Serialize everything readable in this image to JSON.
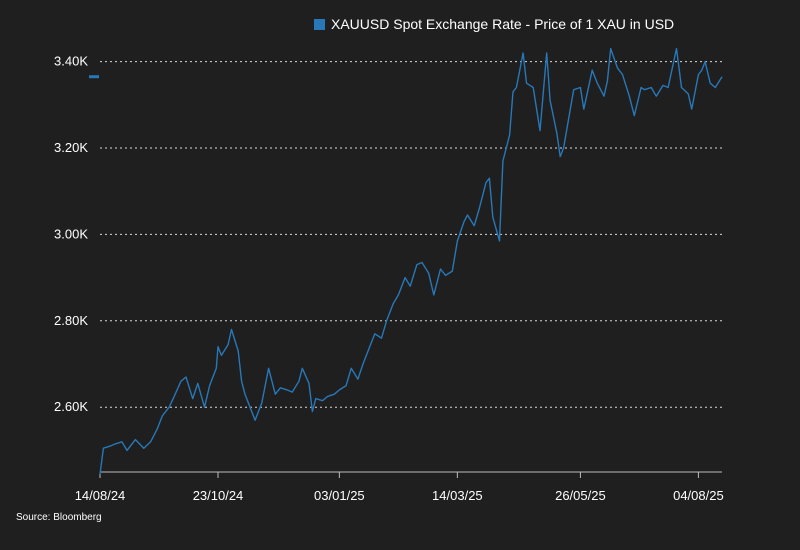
{
  "chart_data": {
    "type": "line",
    "title": "",
    "xlabel": "",
    "ylabel": "",
    "legend_position": "top",
    "ylim": [
      2450,
      3450
    ],
    "yticks": [
      2600,
      2800,
      3000,
      3200,
      3400
    ],
    "ytick_labels": [
      "2.60K",
      "2.80K",
      "3.00K",
      "3.20K",
      "3.40K"
    ],
    "xticks": [
      "2024-08-14",
      "2024-10-23",
      "2025-01-03",
      "2025-03-14",
      "2025-05-26",
      "2025-08-04"
    ],
    "xtick_labels": [
      "14/08/24",
      "23/10/24",
      "03/01/25",
      "14/03/25",
      "26/05/25",
      "04/08/25"
    ],
    "x_range": [
      "2024-08-14",
      "2025-08-18"
    ],
    "grid": "horizontal dotted",
    "last_value": 3365,
    "series": [
      {
        "name": "XAUUSD Spot Exchange Rate - Price of 1 XAU in USD",
        "color": "#2878b8",
        "points": [
          [
            "2024-08-14",
            2445
          ],
          [
            "2024-08-16",
            2505
          ],
          [
            "2024-08-20",
            2510
          ],
          [
            "2024-08-23",
            2515
          ],
          [
            "2024-08-27",
            2520
          ],
          [
            "2024-08-30",
            2500
          ],
          [
            "2024-09-04",
            2525
          ],
          [
            "2024-09-09",
            2505
          ],
          [
            "2024-09-13",
            2520
          ],
          [
            "2024-09-17",
            2550
          ],
          [
            "2024-09-20",
            2580
          ],
          [
            "2024-09-24",
            2600
          ],
          [
            "2024-09-27",
            2625
          ],
          [
            "2024-10-01",
            2660
          ],
          [
            "2024-10-04",
            2670
          ],
          [
            "2024-10-08",
            2620
          ],
          [
            "2024-10-11",
            2655
          ],
          [
            "2024-10-15",
            2600
          ],
          [
            "2024-10-18",
            2650
          ],
          [
            "2024-10-22",
            2690
          ],
          [
            "2024-10-23",
            2740
          ],
          [
            "2024-10-25",
            2720
          ],
          [
            "2024-10-29",
            2745
          ],
          [
            "2024-10-31",
            2780
          ],
          [
            "2024-11-04",
            2730
          ],
          [
            "2024-11-06",
            2660
          ],
          [
            "2024-11-08",
            2630
          ],
          [
            "2024-11-12",
            2590
          ],
          [
            "2024-11-14",
            2570
          ],
          [
            "2024-11-18",
            2610
          ],
          [
            "2024-11-20",
            2650
          ],
          [
            "2024-11-22",
            2690
          ],
          [
            "2024-11-26",
            2630
          ],
          [
            "2024-11-29",
            2645
          ],
          [
            "2024-12-03",
            2640
          ],
          [
            "2024-12-06",
            2635
          ],
          [
            "2024-12-10",
            2660
          ],
          [
            "2024-12-12",
            2690
          ],
          [
            "2024-12-16",
            2655
          ],
          [
            "2024-12-18",
            2590
          ],
          [
            "2024-12-20",
            2620
          ],
          [
            "2024-12-24",
            2615
          ],
          [
            "2024-12-27",
            2625
          ],
          [
            "2024-12-31",
            2630
          ],
          [
            "2025-01-03",
            2640
          ],
          [
            "2025-01-07",
            2650
          ],
          [
            "2025-01-10",
            2690
          ],
          [
            "2025-01-14",
            2665
          ],
          [
            "2025-01-17",
            2700
          ],
          [
            "2025-01-21",
            2740
          ],
          [
            "2025-01-24",
            2770
          ],
          [
            "2025-01-28",
            2760
          ],
          [
            "2025-01-31",
            2800
          ],
          [
            "2025-02-04",
            2840
          ],
          [
            "2025-02-07",
            2860
          ],
          [
            "2025-02-11",
            2900
          ],
          [
            "2025-02-14",
            2880
          ],
          [
            "2025-02-18",
            2930
          ],
          [
            "2025-02-21",
            2935
          ],
          [
            "2025-02-25",
            2910
          ],
          [
            "2025-02-28",
            2860
          ],
          [
            "2025-03-04",
            2920
          ],
          [
            "2025-03-07",
            2905
          ],
          [
            "2025-03-11",
            2915
          ],
          [
            "2025-03-14",
            2985
          ],
          [
            "2025-03-18",
            3030
          ],
          [
            "2025-03-20",
            3045
          ],
          [
            "2025-03-24",
            3020
          ],
          [
            "2025-03-27",
            3060
          ],
          [
            "2025-03-31",
            3120
          ],
          [
            "2025-04-02",
            3130
          ],
          [
            "2025-04-04",
            3040
          ],
          [
            "2025-04-08",
            2985
          ],
          [
            "2025-04-10",
            3170
          ],
          [
            "2025-04-14",
            3230
          ],
          [
            "2025-04-16",
            3330
          ],
          [
            "2025-04-18",
            3340
          ],
          [
            "2025-04-22",
            3420
          ],
          [
            "2025-04-24",
            3350
          ],
          [
            "2025-04-28",
            3340
          ],
          [
            "2025-04-30",
            3290
          ],
          [
            "2025-05-02",
            3240
          ],
          [
            "2025-05-06",
            3420
          ],
          [
            "2025-05-08",
            3310
          ],
          [
            "2025-05-12",
            3235
          ],
          [
            "2025-05-14",
            3180
          ],
          [
            "2025-05-16",
            3200
          ],
          [
            "2025-05-20",
            3290
          ],
          [
            "2025-05-22",
            3335
          ],
          [
            "2025-05-26",
            3340
          ],
          [
            "2025-05-28",
            3290
          ],
          [
            "2025-06-02",
            3380
          ],
          [
            "2025-06-05",
            3350
          ],
          [
            "2025-06-09",
            3320
          ],
          [
            "2025-06-11",
            3355
          ],
          [
            "2025-06-13",
            3430
          ],
          [
            "2025-06-17",
            3385
          ],
          [
            "2025-06-20",
            3370
          ],
          [
            "2025-06-24",
            3320
          ],
          [
            "2025-06-27",
            3275
          ],
          [
            "2025-07-01",
            3340
          ],
          [
            "2025-07-03",
            3335
          ],
          [
            "2025-07-07",
            3340
          ],
          [
            "2025-07-10",
            3320
          ],
          [
            "2025-07-14",
            3345
          ],
          [
            "2025-07-17",
            3340
          ],
          [
            "2025-07-22",
            3430
          ],
          [
            "2025-07-25",
            3340
          ],
          [
            "2025-07-29",
            3325
          ],
          [
            "2025-07-31",
            3290
          ],
          [
            "2025-08-04",
            3370
          ],
          [
            "2025-08-06",
            3380
          ],
          [
            "2025-08-08",
            3400
          ],
          [
            "2025-08-11",
            3350
          ],
          [
            "2025-08-14",
            3340
          ],
          [
            "2025-08-18",
            3365
          ]
        ]
      }
    ]
  },
  "source": "Source: Bloomberg"
}
